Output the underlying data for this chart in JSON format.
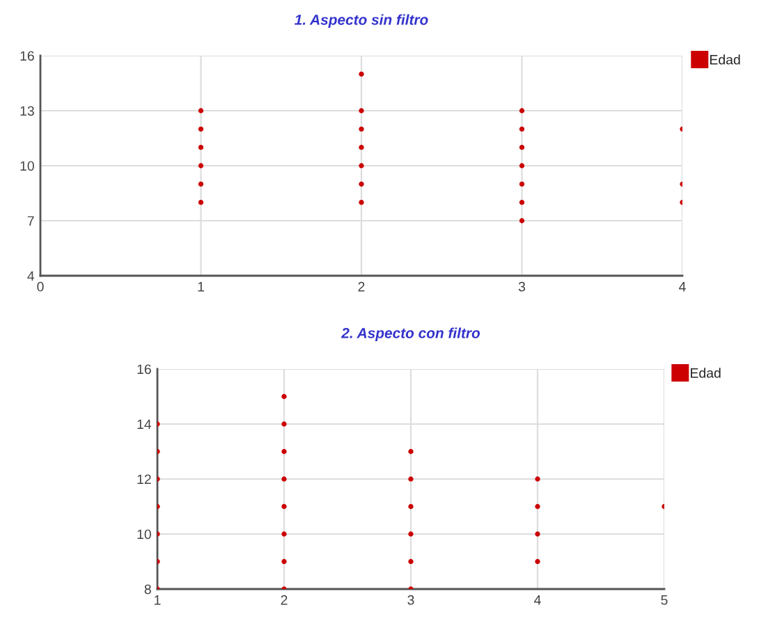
{
  "chart_data": [
    {
      "type": "scatter",
      "title": "1. Aspecto sin filtro",
      "xlim": [
        0,
        4
      ],
      "xticks": [
        0,
        1,
        2,
        3,
        4
      ],
      "ylim": [
        4,
        16
      ],
      "yticks": [
        4,
        7,
        10,
        13,
        16
      ],
      "grid": true,
      "legend": "top right",
      "marker": "circle",
      "series": [
        {
          "name": "Edad",
          "color": "#cc0000",
          "x": [
            1,
            1,
            1,
            1,
            1,
            1,
            2,
            2,
            2,
            2,
            2,
            2,
            2,
            3,
            3,
            3,
            3,
            3,
            3,
            3,
            4,
            4,
            4
          ],
          "values": [
            8,
            9,
            10,
            11,
            12,
            13,
            8,
            9,
            10,
            11,
            12,
            13,
            15,
            7,
            8,
            9,
            10,
            11,
            12,
            13,
            8,
            9,
            12
          ]
        }
      ]
    },
    {
      "type": "scatter",
      "title": "2. Aspecto con filtro",
      "xlim": [
        1,
        5
      ],
      "xticks": [
        1,
        2,
        3,
        4,
        5
      ],
      "ylim": [
        8,
        16
      ],
      "yticks": [
        8,
        10,
        12,
        14,
        16
      ],
      "grid": true,
      "legend": "top right",
      "marker": "circle",
      "series": [
        {
          "name": "Edad",
          "color": "#cc0000",
          "x": [
            1,
            1,
            1,
            1,
            1,
            1,
            1,
            2,
            2,
            2,
            2,
            2,
            2,
            2,
            2,
            3,
            3,
            3,
            3,
            3,
            3,
            4,
            4,
            4,
            4,
            5
          ],
          "values": [
            8,
            9,
            10,
            11,
            12,
            13,
            14,
            8,
            9,
            10,
            11,
            12,
            13,
            14,
            15,
            8,
            9,
            10,
            11,
            12,
            13,
            9,
            10,
            11,
            12,
            11
          ]
        }
      ]
    }
  ]
}
